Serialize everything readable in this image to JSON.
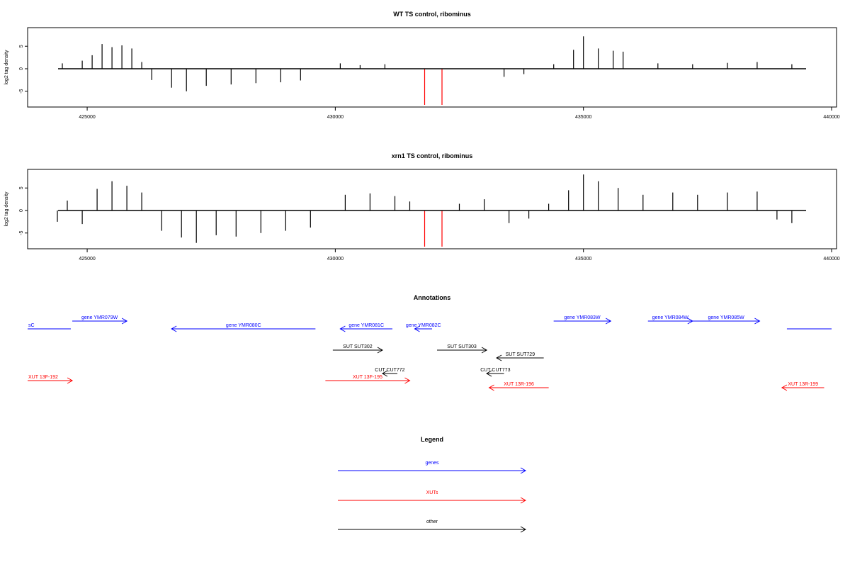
{
  "chart_data": [
    {
      "type": "bar",
      "title": "WT TS control, ribominus",
      "xlabel": "",
      "ylabel": "log2 tag density",
      "xlim": [
        423800,
        440100
      ],
      "ylim": [
        -8.5,
        8.5
      ],
      "x_ticks": [
        425000,
        430000,
        435000,
        440000
      ],
      "y_ticks": [
        5,
        0,
        -5
      ],
      "series": [
        {
          "values": [
            {
              "x": 424500,
              "y": 1.2
            },
            {
              "x": 424900,
              "y": 1.8
            },
            {
              "x": 425100,
              "y": 3.0
            },
            {
              "x": 425300,
              "y": 5.5
            },
            {
              "x": 425500,
              "y": 4.8
            },
            {
              "x": 425700,
              "y": 5.2
            },
            {
              "x": 425900,
              "y": 4.5
            },
            {
              "x": 426100,
              "y": 1.5
            },
            {
              "x": 426300,
              "y": -2.5
            },
            {
              "x": 426700,
              "y": -4.2
            },
            {
              "x": 427000,
              "y": -5.0
            },
            {
              "x": 427400,
              "y": -3.8
            },
            {
              "x": 427900,
              "y": -3.5
            },
            {
              "x": 428400,
              "y": -3.2
            },
            {
              "x": 428900,
              "y": -3.0
            },
            {
              "x": 429300,
              "y": -2.6
            },
            {
              "x": 430100,
              "y": 1.2
            },
            {
              "x": 430500,
              "y": 0.8
            },
            {
              "x": 431000,
              "y": 1.0
            },
            {
              "x": 433400,
              "y": -1.8
            },
            {
              "x": 433800,
              "y": -1.2
            },
            {
              "x": 434400,
              "y": 1.0
            },
            {
              "x": 434800,
              "y": 4.2
            },
            {
              "x": 435000,
              "y": 7.2
            },
            {
              "x": 435300,
              "y": 4.5
            },
            {
              "x": 435600,
              "y": 4.0
            },
            {
              "x": 435800,
              "y": 3.8
            },
            {
              "x": 436500,
              "y": 1.2
            },
            {
              "x": 437200,
              "y": 1.0
            },
            {
              "x": 437900,
              "y": 1.3
            },
            {
              "x": 438500,
              "y": 1.5
            },
            {
              "x": 439200,
              "y": 1.0
            }
          ]
        }
      ],
      "markers": [
        {
          "x": 431800,
          "color": "#ff0000"
        },
        {
          "x": 432150,
          "color": "#ff0000"
        }
      ],
      "grid": false
    },
    {
      "type": "bar",
      "title": "xrn1 TS control, ribominus",
      "xlabel": "",
      "ylabel": "log2 tag density",
      "xlim": [
        423800,
        440100
      ],
      "ylim": [
        -8.5,
        8.5
      ],
      "x_ticks": [
        425000,
        430000,
        435000,
        440000
      ],
      "y_ticks": [
        5,
        0,
        -5
      ],
      "series": [
        {
          "values": [
            {
              "x": 424400,
              "y": -2.5
            },
            {
              "x": 424600,
              "y": 2.2
            },
            {
              "x": 424900,
              "y": -3.0
            },
            {
              "x": 425200,
              "y": 4.8
            },
            {
              "x": 425500,
              "y": 6.5
            },
            {
              "x": 425800,
              "y": 5.5
            },
            {
              "x": 426100,
              "y": 4.0
            },
            {
              "x": 426500,
              "y": -4.5
            },
            {
              "x": 426900,
              "y": -6.0
            },
            {
              "x": 427200,
              "y": -7.2
            },
            {
              "x": 427600,
              "y": -5.5
            },
            {
              "x": 428000,
              "y": -5.8
            },
            {
              "x": 428500,
              "y": -5.0
            },
            {
              "x": 429000,
              "y": -4.5
            },
            {
              "x": 429500,
              "y": -3.8
            },
            {
              "x": 430200,
              "y": 3.5
            },
            {
              "x": 430700,
              "y": 3.8
            },
            {
              "x": 431200,
              "y": 3.2
            },
            {
              "x": 431500,
              "y": 2.0
            },
            {
              "x": 432500,
              "y": 1.5
            },
            {
              "x": 433000,
              "y": 2.5
            },
            {
              "x": 433500,
              "y": -2.8
            },
            {
              "x": 433900,
              "y": -1.8
            },
            {
              "x": 434300,
              "y": 1.5
            },
            {
              "x": 434700,
              "y": 4.5
            },
            {
              "x": 435000,
              "y": 8.0
            },
            {
              "x": 435300,
              "y": 6.5
            },
            {
              "x": 435700,
              "y": 5.0
            },
            {
              "x": 436200,
              "y": 3.5
            },
            {
              "x": 436800,
              "y": 4.0
            },
            {
              "x": 437300,
              "y": 3.5
            },
            {
              "x": 437900,
              "y": 4.0
            },
            {
              "x": 438500,
              "y": 4.2
            },
            {
              "x": 438900,
              "y": -2.0
            },
            {
              "x": 439200,
              "y": -2.8
            }
          ]
        }
      ],
      "markers": [
        {
          "x": 431800,
          "color": "#ff0000"
        },
        {
          "x": 432150,
          "color": "#ff0000"
        }
      ],
      "grid": false
    }
  ],
  "annotations": {
    "title": "Annotations",
    "xlim": [
      423800,
      440100
    ],
    "features": [
      {
        "label": "sC",
        "start": 423800,
        "end": 424670,
        "dir": "none",
        "row": 1,
        "color": "#0000ff"
      },
      {
        "label": "gene YMR079W",
        "start": 424700,
        "end": 425800,
        "dir": "right",
        "row": 0,
        "color": "#0000ff"
      },
      {
        "label": "gene YMR080C",
        "start": 426700,
        "end": 429600,
        "dir": "left",
        "row": 1,
        "color": "#0000ff"
      },
      {
        "label": "gene YMR081C",
        "start": 430100,
        "end": 431150,
        "dir": "left",
        "row": 1,
        "color": "#0000ff"
      },
      {
        "label": "gene YMR082C",
        "start": 431600,
        "end": 431950,
        "dir": "left",
        "row": 1,
        "color": "#0000ff"
      },
      {
        "label": "gene YMR083W",
        "start": 434400,
        "end": 435550,
        "dir": "right",
        "row": 0,
        "color": "#0000ff"
      },
      {
        "label": "gene YMR084W",
        "start": 436300,
        "end": 437200,
        "dir": "right",
        "row": 0,
        "color": "#0000ff"
      },
      {
        "label": "gene YMR085W",
        "start": 437200,
        "end": 438550,
        "dir": "right",
        "row": 0,
        "color": "#0000ff"
      },
      {
        "label": "",
        "start": 439100,
        "end": 440000,
        "dir": "none",
        "row": 1,
        "color": "#0000ff"
      },
      {
        "label": "SUT SUT302",
        "start": 429950,
        "end": 430950,
        "dir": "right",
        "row": 2,
        "color": "#000000"
      },
      {
        "label": "SUT SUT303",
        "start": 432050,
        "end": 433050,
        "dir": "right",
        "row": 2,
        "color": "#000000"
      },
      {
        "label": "SUT SUT729",
        "start": 433250,
        "end": 434200,
        "dir": "left",
        "row": 3,
        "color": "#000000"
      },
      {
        "label": "CUT CUT772",
        "start": 430950,
        "end": 431250,
        "dir": "left",
        "row": 4,
        "color": "#000000"
      },
      {
        "label": "CUT CUT773",
        "start": 433050,
        "end": 433400,
        "dir": "left",
        "row": 4,
        "color": "#000000"
      },
      {
        "label": "XUT 13F-192",
        "start": 423800,
        "end": 424700,
        "dir": "right",
        "row": 5,
        "color": "#ff0000"
      },
      {
        "label": "XUT 13F-195",
        "start": 429800,
        "end": 431500,
        "dir": "right",
        "row": 5,
        "color": "#ff0000"
      },
      {
        "label": "XUT 13R-196",
        "start": 433100,
        "end": 434300,
        "dir": "left",
        "row": 6,
        "color": "#ff0000"
      },
      {
        "label": "XUT 13R-199",
        "start": 439000,
        "end": 439850,
        "dir": "left",
        "row": 6,
        "color": "#ff0000"
      }
    ]
  },
  "legend": {
    "title": "Legend",
    "items": [
      {
        "label": "genes",
        "color": "#0000ff"
      },
      {
        "label": "XUTs",
        "color": "#ff0000"
      },
      {
        "label": "other",
        "color": "#000000"
      }
    ]
  }
}
